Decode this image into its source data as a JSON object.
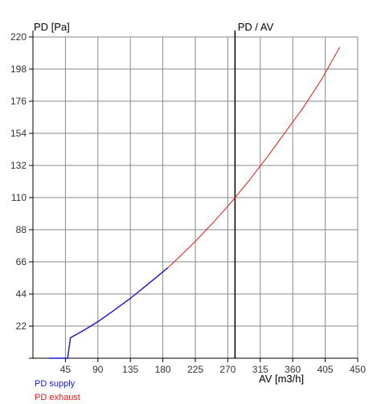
{
  "chart_data": {
    "type": "line",
    "ylabel": "PD [Pa]",
    "xlabel": "AV [m3/h]",
    "title": "PD / AV",
    "xlim": [
      0,
      450
    ],
    "ylim": [
      0,
      220
    ],
    "x_ticks": [
      45,
      90,
      135,
      180,
      225,
      270,
      315,
      360,
      405,
      450
    ],
    "y_ticks": [
      22,
      44,
      66,
      88,
      110,
      132,
      154,
      176,
      198,
      220
    ],
    "grid": true,
    "reference_line_x": 280,
    "series": [
      {
        "name": "PD supply",
        "color": "#1a1acc",
        "points": [
          [
            22,
            0
          ],
          [
            48,
            0
          ],
          [
            52,
            14
          ],
          [
            70,
            19
          ],
          [
            90,
            25
          ],
          [
            110,
            32
          ],
          [
            135,
            41
          ],
          [
            160,
            51
          ],
          [
            187,
            62
          ]
        ]
      },
      {
        "name": "PD exhaust",
        "color": "#e01b1b",
        "points": [
          [
            22,
            0
          ],
          [
            48,
            0
          ],
          [
            52,
            14
          ],
          [
            70,
            19
          ],
          [
            90,
            25
          ],
          [
            110,
            32
          ],
          [
            135,
            41
          ],
          [
            160,
            51
          ],
          [
            187,
            62
          ],
          [
            200,
            68
          ],
          [
            225,
            80
          ],
          [
            250,
            93
          ],
          [
            275,
            107
          ],
          [
            280,
            110
          ],
          [
            300,
            122
          ],
          [
            325,
            138
          ],
          [
            350,
            155
          ],
          [
            375,
            172
          ],
          [
            400,
            191
          ],
          [
            425,
            213
          ]
        ]
      }
    ]
  }
}
